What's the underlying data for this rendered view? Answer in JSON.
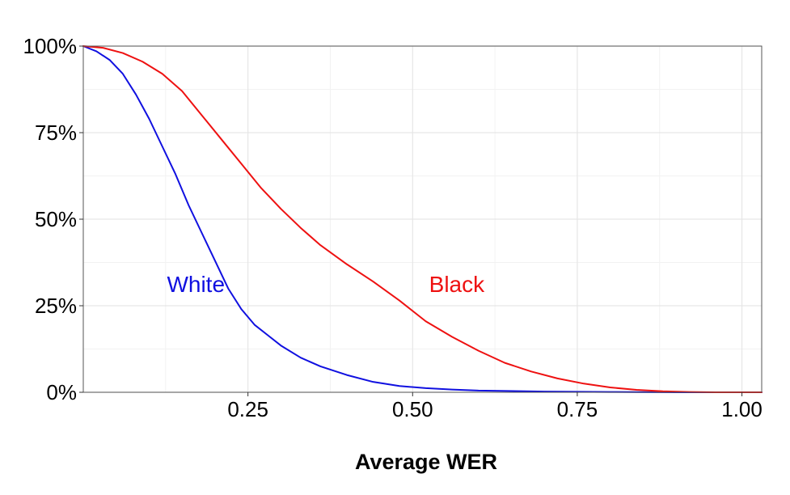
{
  "chart_data": {
    "type": "line",
    "title": "",
    "xlabel": "Average WER",
    "ylabel": "",
    "xlim": [
      0,
      1.03
    ],
    "ylim": [
      0,
      1.0
    ],
    "x_ticks": [
      {
        "value": 0.25,
        "label": "0.25"
      },
      {
        "value": 0.5,
        "label": "0.50"
      },
      {
        "value": 0.75,
        "label": "0.75"
      },
      {
        "value": 1.0,
        "label": "1.00"
      }
    ],
    "y_ticks": [
      {
        "value": 0.0,
        "label": "0%"
      },
      {
        "value": 0.25,
        "label": "25%"
      },
      {
        "value": 0.5,
        "label": "50%"
      },
      {
        "value": 0.75,
        "label": "75%"
      },
      {
        "value": 1.0,
        "label": "100%"
      }
    ],
    "grid": true,
    "legend": "none",
    "series": [
      {
        "name": "White",
        "color": "#1010e0",
        "x": [
          0.0,
          0.02,
          0.04,
          0.06,
          0.08,
          0.1,
          0.12,
          0.14,
          0.16,
          0.18,
          0.2,
          0.22,
          0.24,
          0.26,
          0.28,
          0.3,
          0.33,
          0.36,
          0.4,
          0.44,
          0.48,
          0.52,
          0.56,
          0.6,
          0.7,
          0.8,
          0.9,
          1.03
        ],
        "y": [
          1.0,
          0.985,
          0.96,
          0.92,
          0.86,
          0.79,
          0.71,
          0.63,
          0.54,
          0.46,
          0.38,
          0.3,
          0.24,
          0.195,
          0.165,
          0.135,
          0.1,
          0.075,
          0.05,
          0.03,
          0.018,
          0.012,
          0.008,
          0.005,
          0.002,
          0.001,
          0.0,
          0.0
        ]
      },
      {
        "name": "Black",
        "color": "#ee1111",
        "x": [
          0.0,
          0.03,
          0.06,
          0.09,
          0.12,
          0.15,
          0.18,
          0.21,
          0.24,
          0.27,
          0.3,
          0.33,
          0.36,
          0.4,
          0.44,
          0.48,
          0.52,
          0.56,
          0.6,
          0.64,
          0.68,
          0.72,
          0.76,
          0.8,
          0.84,
          0.88,
          0.92,
          0.96,
          1.03
        ],
        "y": [
          1.0,
          0.995,
          0.98,
          0.955,
          0.92,
          0.87,
          0.8,
          0.73,
          0.66,
          0.59,
          0.53,
          0.475,
          0.425,
          0.37,
          0.32,
          0.265,
          0.205,
          0.16,
          0.12,
          0.085,
          0.06,
          0.04,
          0.025,
          0.014,
          0.007,
          0.003,
          0.001,
          0.0,
          0.0
        ]
      }
    ],
    "annotations": [
      {
        "text": "White",
        "series": "White",
        "x": 0.127,
        "y": 0.29
      },
      {
        "text": "Black",
        "series": "Black",
        "x": 0.525,
        "y": 0.29
      }
    ]
  }
}
